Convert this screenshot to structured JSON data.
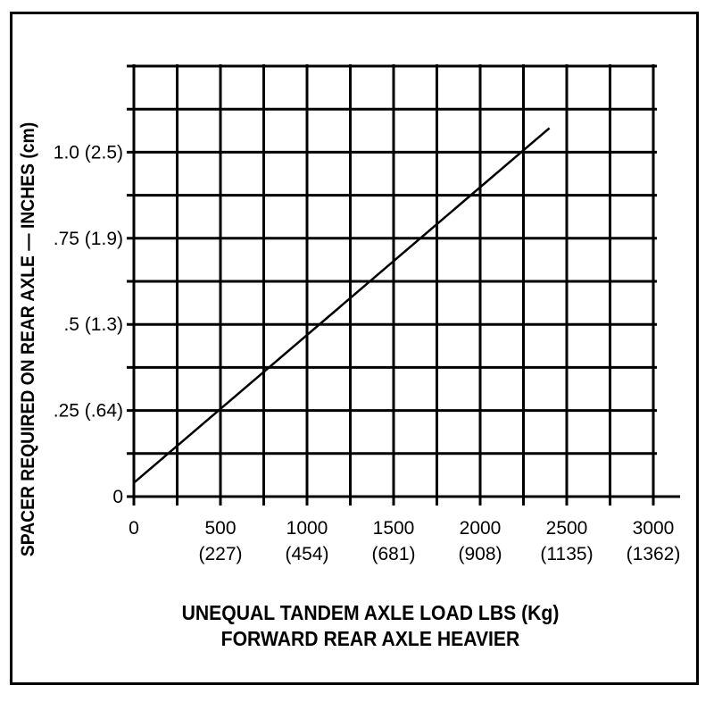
{
  "chart_data": {
    "type": "line",
    "xlabel": [
      "UNEQUAL TANDEM AXLE LOAD LBS (Kg)",
      "FORWARD REAR AXLE HEAVIER"
    ],
    "ylabel": "SPACER REQUIRED ON REAR AXLE — INCHES (cm)",
    "x_ticks": [
      {
        "value": 0,
        "label": "0",
        "sublabel": ""
      },
      {
        "value": 500,
        "label": "500",
        "sublabel": "(227)"
      },
      {
        "value": 1000,
        "label": "1000",
        "sublabel": "(454)"
      },
      {
        "value": 1500,
        "label": "1500",
        "sublabel": "(681)"
      },
      {
        "value": 2000,
        "label": "2000",
        "sublabel": "(908)"
      },
      {
        "value": 2500,
        "label": "2500",
        "sublabel": "(1135)"
      },
      {
        "value": 3000,
        "label": "3000",
        "sublabel": "(1362)"
      }
    ],
    "y_ticks": [
      {
        "value": 0,
        "label": "0"
      },
      {
        "value": 0.25,
        "label": ".25 (.64)"
      },
      {
        "value": 0.5,
        "label": ".5 (1.3)"
      },
      {
        "value": 0.75,
        "label": ".75 (1.9)"
      },
      {
        "value": 1.0,
        "label": "1.0 (2.5)"
      }
    ],
    "xlim": [
      0,
      3000
    ],
    "ylim": [
      0,
      1.25
    ],
    "grid": true,
    "grid_step": {
      "x": 250,
      "y": 0.125
    },
    "series": [
      {
        "points": [
          [
            0,
            0.04
          ],
          [
            2400,
            1.07
          ]
        ]
      }
    ]
  }
}
